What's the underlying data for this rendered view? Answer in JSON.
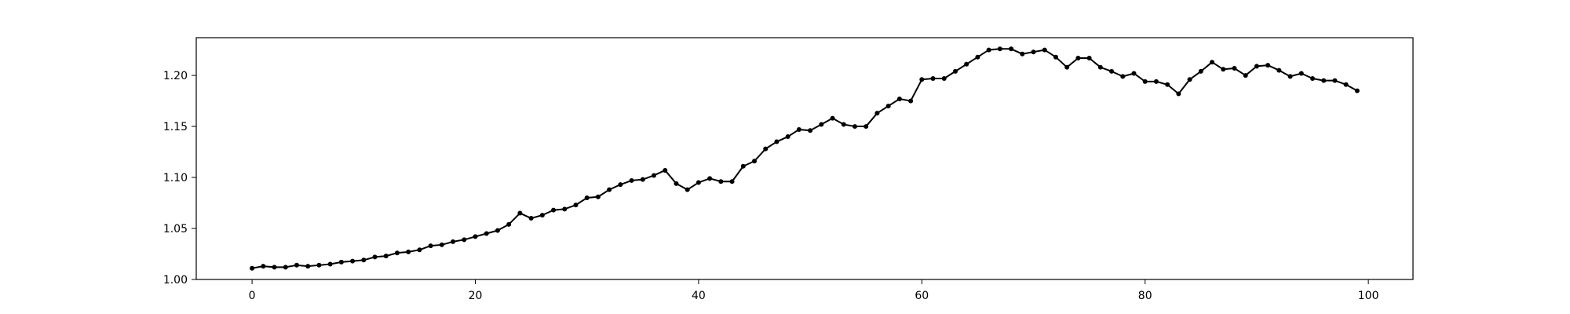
{
  "chart_data": {
    "type": "line",
    "title": "",
    "xlabel": "",
    "ylabel": "",
    "xlim": [
      -5,
      104
    ],
    "ylim": [
      1.0,
      1.237
    ],
    "xticks": [
      0,
      20,
      40,
      60,
      80,
      100
    ],
    "yticks": [
      1.0,
      1.05,
      1.1,
      1.15,
      1.2
    ],
    "xtick_labels": [
      "0",
      "20",
      "40",
      "60",
      "80",
      "100"
    ],
    "ytick_labels": [
      "1.00",
      "1.05",
      "1.10",
      "1.15",
      "1.20"
    ],
    "grid": false,
    "legend": "none",
    "colors": {
      "line": "#000000",
      "marker": "#000000",
      "frame": "#000000",
      "background": "#ffffff"
    },
    "series": [
      {
        "marker": "circle",
        "x": [
          0,
          1,
          2,
          3,
          4,
          5,
          6,
          7,
          8,
          9,
          10,
          11,
          12,
          13,
          14,
          15,
          16,
          17,
          18,
          19,
          20,
          21,
          22,
          23,
          24,
          25,
          26,
          27,
          28,
          29,
          30,
          31,
          32,
          33,
          34,
          35,
          36,
          37,
          38,
          39,
          40,
          41,
          42,
          43,
          44,
          45,
          46,
          47,
          48,
          49,
          50,
          51,
          52,
          53,
          54,
          55,
          56,
          57,
          58,
          59,
          60,
          61,
          62,
          63,
          64,
          65,
          66,
          67,
          68,
          69,
          70,
          71,
          72,
          73,
          74,
          75,
          76,
          77,
          78,
          79,
          80,
          81,
          82,
          83,
          84,
          85,
          86,
          87,
          88,
          89,
          90,
          91,
          92,
          93,
          94,
          95,
          96,
          97,
          98,
          99
        ],
        "y": [
          1.011,
          1.013,
          1.012,
          1.012,
          1.014,
          1.013,
          1.014,
          1.015,
          1.017,
          1.018,
          1.019,
          1.022,
          1.023,
          1.026,
          1.027,
          1.029,
          1.033,
          1.034,
          1.037,
          1.039,
          1.042,
          1.045,
          1.048,
          1.054,
          1.065,
          1.06,
          1.063,
          1.068,
          1.069,
          1.073,
          1.08,
          1.081,
          1.088,
          1.093,
          1.097,
          1.098,
          1.102,
          1.107,
          1.094,
          1.088,
          1.095,
          1.099,
          1.096,
          1.096,
          1.111,
          1.116,
          1.128,
          1.135,
          1.14,
          1.147,
          1.146,
          1.152,
          1.158,
          1.152,
          1.15,
          1.15,
          1.163,
          1.17,
          1.177,
          1.175,
          1.196,
          1.197,
          1.197,
          1.204,
          1.211,
          1.218,
          1.225,
          1.226,
          1.226,
          1.221,
          1.223,
          1.225,
          1.218,
          1.208,
          1.217,
          1.217,
          1.208,
          1.204,
          1.199,
          1.202,
          1.194,
          1.194,
          1.191,
          1.182,
          1.196,
          1.204,
          1.213,
          1.206,
          1.207,
          1.2,
          1.209,
          1.21,
          1.205,
          1.199,
          1.202,
          1.197,
          1.195,
          1.195,
          1.191,
          1.185
        ]
      }
    ]
  }
}
